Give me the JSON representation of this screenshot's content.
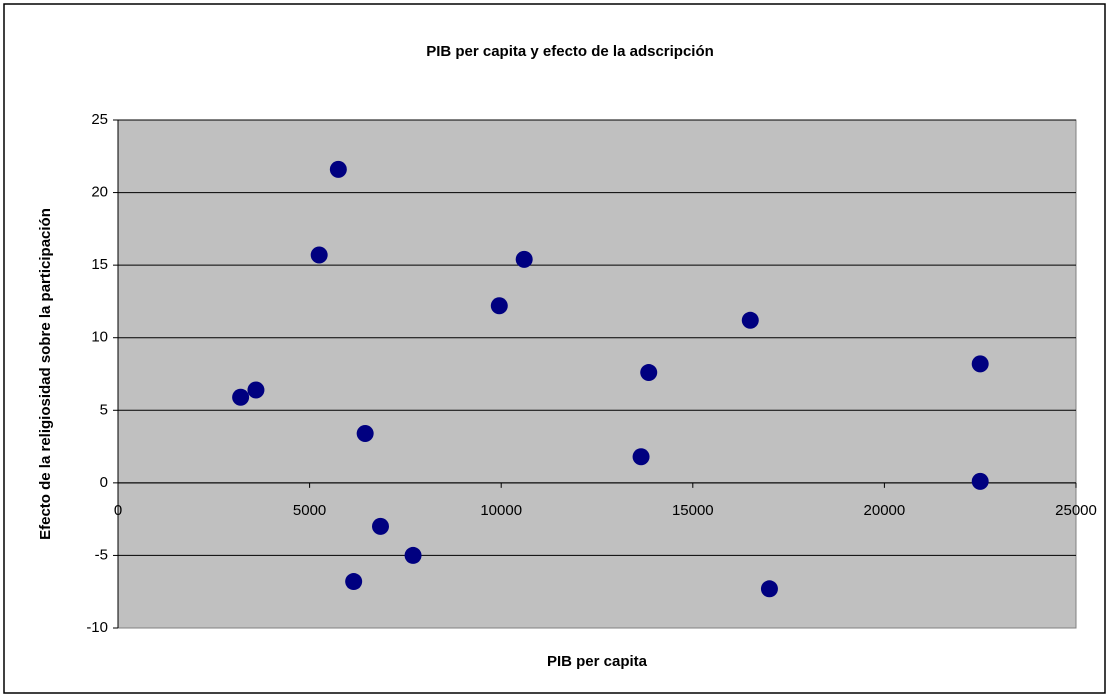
{
  "chart_data": {
    "type": "scatter",
    "title": "PIB per capita y efecto de la adscripción",
    "xlabel": "PIB per capita",
    "ylabel": "Efecto de la religiosidad sobre la participación",
    "series": [
      {
        "color": "#000080",
        "x": [
          3200,
          3600,
          5750,
          5250,
          6450,
          6850,
          6150,
          7700,
          9950,
          10600,
          13650,
          13850,
          16500,
          17000,
          22500,
          22500
        ],
        "values": [
          5.9,
          6.4,
          21.6,
          15.7,
          3.4,
          -3.0,
          -6.8,
          -5.0,
          12.2,
          15.4,
          1.8,
          7.6,
          11.2,
          -7.3,
          8.2,
          0.1
        ]
      }
    ],
    "xlim": [
      0,
      25000
    ],
    "xticks": [
      0,
      5000,
      10000,
      15000,
      20000,
      25000
    ],
    "ylim": [
      -10,
      25
    ],
    "yticks": [
      -10,
      -5,
      0,
      5,
      10,
      15,
      20,
      25
    ],
    "grid": true
  }
}
